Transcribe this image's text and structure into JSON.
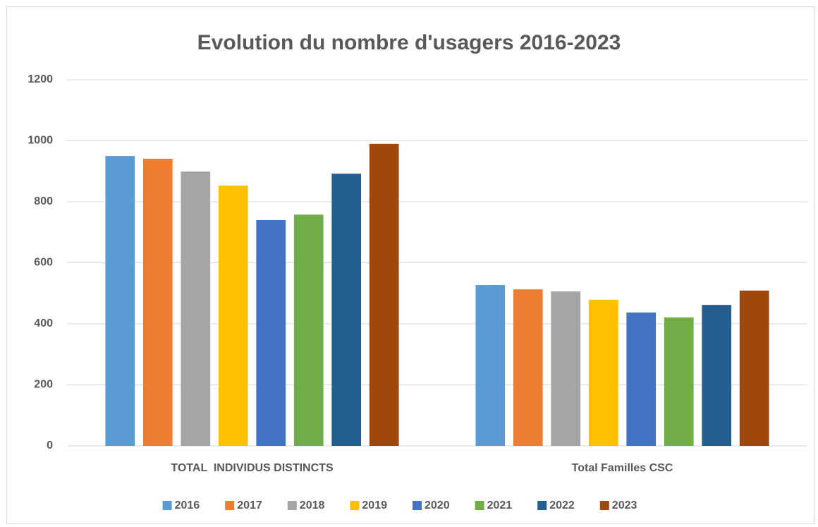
{
  "chart_data": {
    "type": "bar",
    "title": "Evolution du nombre d'usagers 2016-2023",
    "categories": [
      "TOTAL  INDIVIDUS DISTINCTS",
      "Total Familles CSC"
    ],
    "series": [
      {
        "name": "2016",
        "color": "#5b9bd5",
        "values": [
          950,
          527
        ]
      },
      {
        "name": "2017",
        "color": "#ed7d31",
        "values": [
          941,
          513
        ]
      },
      {
        "name": "2018",
        "color": "#a5a5a5",
        "values": [
          899,
          506
        ]
      },
      {
        "name": "2019",
        "color": "#ffc000",
        "values": [
          853,
          479
        ]
      },
      {
        "name": "2020",
        "color": "#4472c4",
        "values": [
          740,
          437
        ]
      },
      {
        "name": "2021",
        "color": "#70ad47",
        "values": [
          758,
          421
        ]
      },
      {
        "name": "2022",
        "color": "#255e91",
        "values": [
          892,
          462
        ]
      },
      {
        "name": "2023",
        "color": "#9e480e",
        "values": [
          990,
          509
        ]
      }
    ],
    "ylim": [
      0,
      1200
    ],
    "yticks": [
      0,
      200,
      400,
      600,
      800,
      1000,
      1200
    ],
    "grid": true,
    "legend": "bottom"
  }
}
